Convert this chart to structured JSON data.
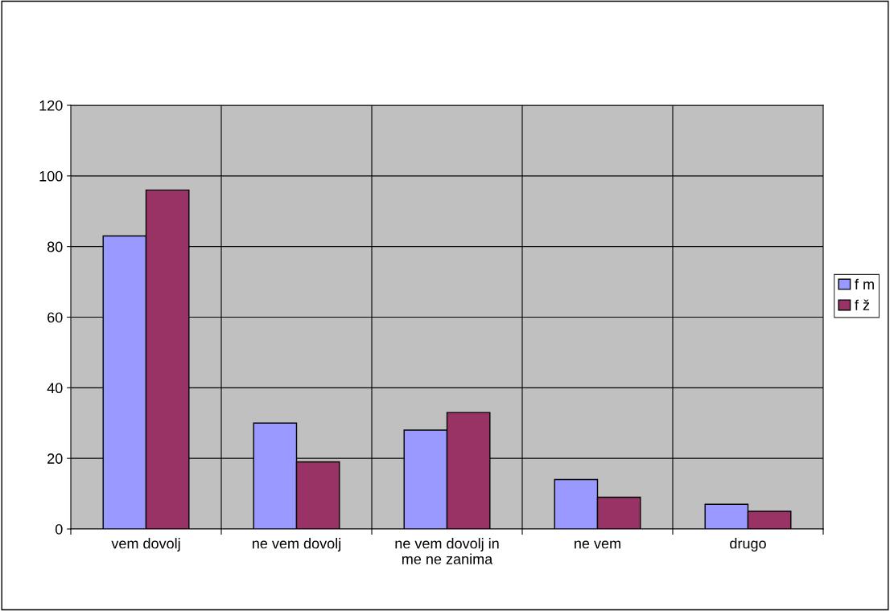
{
  "chart_data": {
    "type": "bar",
    "categories": [
      "vem dovolj",
      "ne vem dovolj",
      "ne vem dovolj in\nme ne zanima",
      "ne vem",
      "drugo"
    ],
    "series": [
      {
        "name": "f m",
        "color": "#9999ff",
        "values": [
          83,
          30,
          28,
          14,
          7
        ]
      },
      {
        "name": "f ž",
        "color": "#993366",
        "values": [
          96,
          19,
          33,
          9,
          5
        ]
      }
    ],
    "ylim": [
      0,
      120
    ],
    "yticks": [
      0,
      20,
      40,
      60,
      80,
      100,
      120
    ],
    "grid": true,
    "legend": "right"
  }
}
